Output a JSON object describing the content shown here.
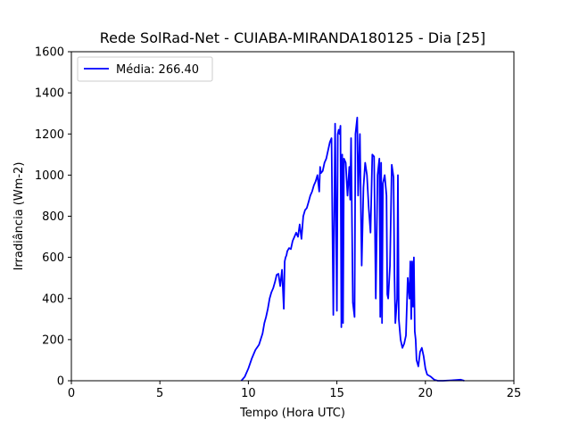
{
  "chart_data": {
    "type": "line",
    "title": "Rede SolRad-Net - CUIABA-MIRANDA180125 - Dia [25]",
    "xlabel": "Tempo (Hora UTC)",
    "ylabel": "Irradiância (Wm-2)",
    "xlim": [
      0,
      25
    ],
    "ylim": [
      0,
      1600
    ],
    "xticks": [
      0,
      5,
      10,
      15,
      20,
      25
    ],
    "yticks": [
      0,
      200,
      400,
      600,
      800,
      1000,
      1200,
      1400,
      1600
    ],
    "xtick_labels": [
      "0",
      "5",
      "10",
      "15",
      "20",
      "25"
    ],
    "ytick_labels": [
      "0",
      "200",
      "400",
      "600",
      "800",
      "1000",
      "1200",
      "1400",
      "1600"
    ],
    "grid": false,
    "legend_position": "upper-left",
    "series": [
      {
        "name": "Média: 266.40",
        "color": "#0000ff",
        "x": [
          9.6,
          9.8,
          10.0,
          10.2,
          10.4,
          10.6,
          10.8,
          10.9,
          11.0,
          11.1,
          11.2,
          11.3,
          11.4,
          11.5,
          11.6,
          11.7,
          11.8,
          11.9,
          12.0,
          12.05,
          12.1,
          12.15,
          12.2,
          12.3,
          12.4,
          12.5,
          12.6,
          12.7,
          12.8,
          12.9,
          13.0,
          13.1,
          13.2,
          13.3,
          13.4,
          13.5,
          13.6,
          13.7,
          13.8,
          13.9,
          14.0,
          14.05,
          14.1,
          14.2,
          14.3,
          14.4,
          14.5,
          14.6,
          14.7,
          14.8,
          14.9,
          15.0,
          15.05,
          15.1,
          15.15,
          15.2,
          15.25,
          15.3,
          15.35,
          15.4,
          15.5,
          15.6,
          15.7,
          15.75,
          15.8,
          15.9,
          16.0,
          16.05,
          16.1,
          16.15,
          16.2,
          16.3,
          16.4,
          16.5,
          16.6,
          16.7,
          16.8,
          16.9,
          17.0,
          17.1,
          17.2,
          17.3,
          17.4,
          17.45,
          17.5,
          17.55,
          17.6,
          17.7,
          17.8,
          17.85,
          17.9,
          18.0,
          18.1,
          18.2,
          18.25,
          18.3,
          18.4,
          18.45,
          18.5,
          18.6,
          18.7,
          18.8,
          18.9,
          19.0,
          19.1,
          19.15,
          19.2,
          19.25,
          19.3,
          19.35,
          19.4,
          19.45,
          19.5,
          19.6,
          19.7,
          19.8,
          19.9,
          20.0,
          20.1,
          20.3,
          20.5,
          20.7,
          21.0,
          21.5,
          22.0,
          22.2
        ],
        "y": [
          0,
          20,
          60,
          110,
          150,
          175,
          230,
          280,
          310,
          350,
          400,
          430,
          450,
          480,
          515,
          520,
          460,
          540,
          350,
          580,
          600,
          610,
          630,
          645,
          640,
          680,
          700,
          720,
          700,
          760,
          690,
          800,
          830,
          840,
          870,
          900,
          920,
          950,
          970,
          1000,
          920,
          1040,
          1010,
          1020,
          1060,
          1080,
          1120,
          1160,
          1180,
          320,
          1250,
          340,
          1200,
          1220,
          1200,
          1240,
          260,
          1100,
          280,
          1080,
          1060,
          900,
          1040,
          880,
          1180,
          380,
          310,
          1200,
          1240,
          1280,
          900,
          1200,
          560,
          940,
          1060,
          1000,
          840,
          720,
          1100,
          1090,
          400,
          1000,
          1080,
          310,
          1060,
          280,
          960,
          1000,
          900,
          420,
          400,
          560,
          1050,
          990,
          520,
          280,
          400,
          1000,
          300,
          200,
          160,
          180,
          220,
          500,
          400,
          580,
          300,
          580,
          360,
          600,
          240,
          200,
          100,
          70,
          140,
          160,
          120,
          60,
          30,
          20,
          5,
          0,
          0,
          2,
          5,
          0
        ]
      }
    ]
  }
}
